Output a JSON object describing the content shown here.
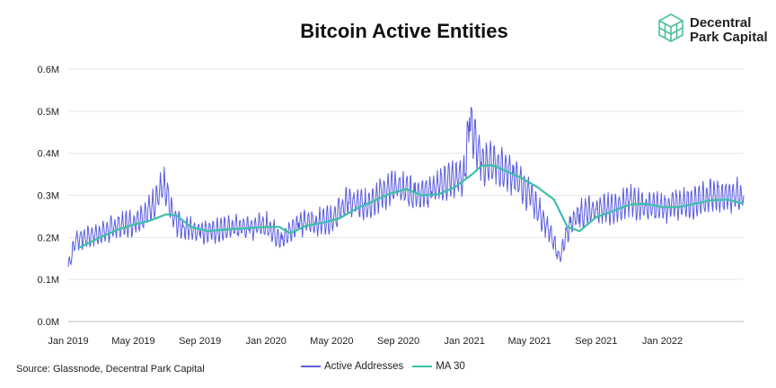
{
  "header": {
    "title": "Bitcoin Active Entities"
  },
  "brand": {
    "name_line1": "Decentral",
    "name_line2": "Park Capital",
    "icon": "isometric-cube-logo",
    "color": "#4dbf9a"
  },
  "footer": {
    "source": "Source: Glassnode, Decentral Park Capital"
  },
  "chart_data": {
    "type": "line",
    "title": "Bitcoin Active Entities",
    "xlabel": "",
    "ylabel": "",
    "ylim": [
      0,
      600000
    ],
    "y_ticks": [
      {
        "value": 0,
        "label": "0.0M"
      },
      {
        "value": 100000,
        "label": "0.1M"
      },
      {
        "value": 200000,
        "label": "0.2M"
      },
      {
        "value": 300000,
        "label": "0.3M"
      },
      {
        "value": 400000,
        "label": "0.4M"
      },
      {
        "value": 500000,
        "label": "0.5M"
      },
      {
        "value": 600000,
        "label": "0.6M"
      }
    ],
    "x_range": [
      "2019-01-01",
      "2022-05-31"
    ],
    "x_ticks": [
      {
        "date": "2019-01-01",
        "label": "Jan 2019"
      },
      {
        "date": "2019-05-01",
        "label": "May 2019"
      },
      {
        "date": "2019-09-01",
        "label": "Sep 2019"
      },
      {
        "date": "2020-01-01",
        "label": "Jan 2020"
      },
      {
        "date": "2020-05-01",
        "label": "May 2020"
      },
      {
        "date": "2020-09-01",
        "label": "Sep 2020"
      },
      {
        "date": "2021-01-01",
        "label": "Jan 2021"
      },
      {
        "date": "2021-05-01",
        "label": "May 2021"
      },
      {
        "date": "2021-09-01",
        "label": "Sep 2021"
      },
      {
        "date": "2022-01-01",
        "label": "Jan 2022"
      }
    ],
    "grid": {
      "horizontal": true,
      "vertical": false
    },
    "legend_position": "bottom-center",
    "series": [
      {
        "name": "Active Addresses",
        "color": "#5a5ce0",
        "style": "daily, strong weekly oscillation",
        "points": [
          [
            "2019-01-01",
            130000
          ],
          [
            "2019-01-15",
            195000
          ],
          [
            "2019-02-01",
            200000
          ],
          [
            "2019-03-01",
            210000
          ],
          [
            "2019-04-01",
            225000
          ],
          [
            "2019-05-01",
            235000
          ],
          [
            "2019-06-01",
            265000
          ],
          [
            "2019-06-26",
            325000
          ],
          [
            "2019-07-15",
            240000
          ],
          [
            "2019-08-01",
            225000
          ],
          [
            "2019-09-01",
            215000
          ],
          [
            "2019-10-01",
            215000
          ],
          [
            "2019-11-01",
            225000
          ],
          [
            "2019-12-01",
            225000
          ],
          [
            "2020-01-01",
            230000
          ],
          [
            "2020-01-30",
            195000
          ],
          [
            "2020-02-15",
            215000
          ],
          [
            "2020-03-01",
            235000
          ],
          [
            "2020-04-01",
            235000
          ],
          [
            "2020-05-01",
            245000
          ],
          [
            "2020-06-01",
            285000
          ],
          [
            "2020-07-01",
            275000
          ],
          [
            "2020-08-01",
            305000
          ],
          [
            "2020-09-01",
            320000
          ],
          [
            "2020-10-01",
            305000
          ],
          [
            "2020-11-01",
            310000
          ],
          [
            "2020-12-01",
            335000
          ],
          [
            "2021-01-01",
            345000
          ],
          [
            "2021-01-10",
            485000
          ],
          [
            "2021-02-01",
            380000
          ],
          [
            "2021-03-01",
            370000
          ],
          [
            "2021-04-01",
            350000
          ],
          [
            "2021-05-01",
            300000
          ],
          [
            "2021-06-01",
            230000
          ],
          [
            "2021-06-26",
            150000
          ],
          [
            "2021-07-15",
            235000
          ],
          [
            "2021-08-01",
            255000
          ],
          [
            "2021-09-01",
            265000
          ],
          [
            "2021-10-01",
            270000
          ],
          [
            "2021-11-01",
            285000
          ],
          [
            "2021-12-01",
            275000
          ],
          [
            "2022-01-01",
            270000
          ],
          [
            "2022-02-01",
            280000
          ],
          [
            "2022-03-01",
            285000
          ],
          [
            "2022-04-01",
            300000
          ],
          [
            "2022-05-31",
            300000
          ]
        ]
      },
      {
        "name": "MA 30",
        "color": "#3cc0a6",
        "points": [
          [
            "2019-01-20",
            175000
          ],
          [
            "2019-03-01",
            200000
          ],
          [
            "2019-04-01",
            218000
          ],
          [
            "2019-05-01",
            230000
          ],
          [
            "2019-06-01",
            240000
          ],
          [
            "2019-07-01",
            255000
          ],
          [
            "2019-07-20",
            252000
          ],
          [
            "2019-08-15",
            225000
          ],
          [
            "2019-09-15",
            215000
          ],
          [
            "2019-11-01",
            220000
          ],
          [
            "2019-12-01",
            222000
          ],
          [
            "2020-01-01",
            225000
          ],
          [
            "2020-01-25",
            225000
          ],
          [
            "2020-02-15",
            210000
          ],
          [
            "2020-03-15",
            228000
          ],
          [
            "2020-04-15",
            235000
          ],
          [
            "2020-05-15",
            245000
          ],
          [
            "2020-06-15",
            268000
          ],
          [
            "2020-07-15",
            285000
          ],
          [
            "2020-08-15",
            303000
          ],
          [
            "2020-09-15",
            315000
          ],
          [
            "2020-10-15",
            300000
          ],
          [
            "2020-11-15",
            303000
          ],
          [
            "2020-12-15",
            320000
          ],
          [
            "2021-01-15",
            350000
          ],
          [
            "2021-02-01",
            370000
          ],
          [
            "2021-02-20",
            372000
          ],
          [
            "2021-03-15",
            360000
          ],
          [
            "2021-04-15",
            342000
          ],
          [
            "2021-05-15",
            320000
          ],
          [
            "2021-06-15",
            290000
          ],
          [
            "2021-07-10",
            225000
          ],
          [
            "2021-08-01",
            215000
          ],
          [
            "2021-09-01",
            248000
          ],
          [
            "2021-10-01",
            262000
          ],
          [
            "2021-11-01",
            278000
          ],
          [
            "2021-12-01",
            280000
          ],
          [
            "2022-01-01",
            272000
          ],
          [
            "2022-02-01",
            272000
          ],
          [
            "2022-03-01",
            280000
          ],
          [
            "2022-04-01",
            288000
          ],
          [
            "2022-05-01",
            290000
          ],
          [
            "2022-05-31",
            280000
          ]
        ]
      }
    ]
  }
}
